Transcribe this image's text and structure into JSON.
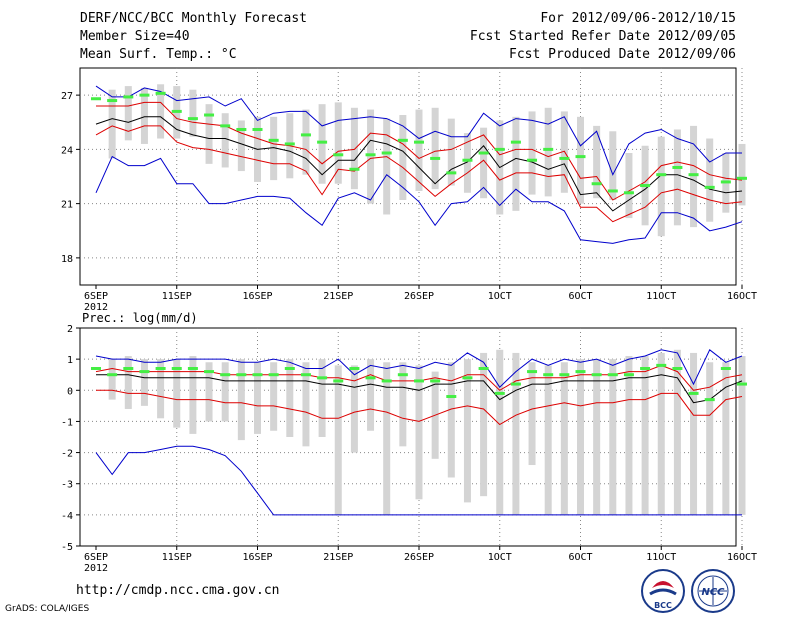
{
  "header": {
    "title": "DERF/NCC/BCC Monthly Forecast",
    "member_size": "Member Size=40",
    "variable": "Mean Surf. Temp.: °C",
    "period": "For 2012/09/06-2012/10/15",
    "started": "Fcst Started Refer Date 2012/09/05",
    "produced": "Fcst Produced Date 2012/09/06"
  },
  "footer": {
    "url": "http://cmdp.ncc.cma.gov.cn",
    "credit": "GrADS: COLA/IGES",
    "logo_left_text": "BCC",
    "logo_right_text": "NCC"
  },
  "colors": {
    "envelope": "#0000cc",
    "spread": "#dd0000",
    "mean": "#000000",
    "observed": "#44ee44",
    "bars": "#d4d4d4"
  },
  "chart_data": [
    {
      "type": "line",
      "title": "Mean Surf. Temp.: °C",
      "x_tick_labels": [
        "6SEP",
        "11SEP",
        "16SEP",
        "21SEP",
        "26SEP",
        "1OCT",
        "6OCT",
        "11OCT",
        "16OCT"
      ],
      "x_year_label": "2012",
      "y_ticks": [
        "18",
        "21",
        "24",
        "27"
      ],
      "ylim": [
        16.5,
        28.5
      ],
      "days": 40,
      "bar_low": [
        23.5,
        24.5,
        24.3,
        24.6,
        24.6,
        24.7,
        23.2,
        23.0,
        22.8,
        22.2,
        22.3,
        22.4,
        22.6,
        22.1,
        22.1,
        21.8,
        21.0,
        20.4,
        21.2,
        21.7,
        21.8,
        22.0,
        21.6,
        21.3,
        20.4,
        20.6,
        21.5,
        21.4,
        21.6,
        21.0,
        21.3,
        21.2,
        20.2,
        19.8,
        19.2,
        19.8,
        19.7,
        20.0,
        20.5,
        20.9
      ],
      "bar_high": [
        27.3,
        27.5,
        27.4,
        27.6,
        27.5,
        27.3,
        26.5,
        26.0,
        25.6,
        25.8,
        25.8,
        26.0,
        26.2,
        26.5,
        26.6,
        26.3,
        26.2,
        25.7,
        25.9,
        26.2,
        26.3,
        25.7,
        24.9,
        25.2,
        25.6,
        25.8,
        26.1,
        26.3,
        26.1,
        25.8,
        25.3,
        25.0,
        23.8,
        24.2,
        24.7,
        25.1,
        25.3,
        24.6,
        23.8,
        24.3
      ],
      "series": [
        {
          "name": "max",
          "color": "blue",
          "values": [
            27.5,
            26.9,
            26.9,
            27.4,
            27.2,
            26.7,
            26.8,
            26.9,
            26.4,
            26.8,
            25.6,
            26.0,
            26.1,
            26.1,
            25.3,
            25.6,
            25.7,
            25.8,
            25.7,
            25.3,
            24.6,
            25.0,
            24.7,
            24.7,
            26.0,
            25.3,
            25.7,
            25.6,
            25.4,
            25.8,
            24.2,
            25.0,
            22.6,
            24.3,
            24.9,
            25.1,
            24.6,
            24.3,
            23.3,
            23.8,
            23.8
          ]
        },
        {
          "name": "upper",
          "color": "red",
          "values": [
            26.4,
            26.4,
            26.4,
            26.6,
            26.6,
            25.7,
            25.5,
            25.4,
            25.3,
            24.9,
            24.6,
            24.3,
            24.2,
            24.0,
            23.2,
            23.9,
            24.0,
            24.9,
            24.8,
            24.3,
            23.5,
            23.9,
            24.0,
            24.4,
            24.8,
            23.7,
            24.0,
            24.0,
            23.6,
            23.9,
            22.4,
            22.5,
            21.2,
            21.7,
            22.2,
            23.1,
            23.3,
            23.1,
            22.6,
            22.4,
            22.3
          ]
        },
        {
          "name": "mean",
          "color": "black",
          "values": [
            25.4,
            25.7,
            25.5,
            25.8,
            25.8,
            25.1,
            24.8,
            24.6,
            24.6,
            24.3,
            24.0,
            24.1,
            23.9,
            23.5,
            22.6,
            23.4,
            23.4,
            24.5,
            24.3,
            23.9,
            23.0,
            22.1,
            22.9,
            23.3,
            24.2,
            23.0,
            23.5,
            23.3,
            22.9,
            23.2,
            21.5,
            21.6,
            20.6,
            21.2,
            21.8,
            22.6,
            22.6,
            22.3,
            21.8,
            21.6,
            21.7
          ]
        },
        {
          "name": "lower",
          "color": "red",
          "values": [
            24.8,
            25.3,
            25.0,
            25.3,
            25.3,
            24.4,
            24.1,
            24.0,
            23.8,
            23.6,
            23.4,
            23.2,
            23.2,
            22.8,
            21.5,
            22.9,
            22.8,
            23.5,
            23.6,
            23.0,
            22.2,
            21.4,
            22.1,
            22.7,
            23.4,
            22.3,
            22.7,
            22.7,
            22.5,
            22.6,
            20.8,
            20.8,
            20.0,
            20.4,
            20.8,
            21.6,
            21.8,
            21.5,
            21.2,
            21.0,
            21.1
          ]
        },
        {
          "name": "min",
          "color": "blue",
          "values": [
            21.6,
            23.6,
            23.1,
            23.1,
            23.5,
            22.1,
            22.1,
            21.0,
            21.0,
            21.2,
            21.4,
            21.4,
            21.3,
            20.5,
            19.8,
            21.3,
            21.6,
            21.2,
            22.6,
            21.9,
            21.1,
            19.8,
            21.0,
            21.1,
            21.9,
            20.9,
            21.8,
            21.1,
            21.1,
            20.6,
            19.0,
            18.9,
            18.8,
            19.0,
            19.1,
            20.5,
            20.5,
            20.2,
            19.5,
            19.7,
            20.0
          ]
        }
      ],
      "observed": [
        26.8,
        26.7,
        26.9,
        27.0,
        27.1,
        26.1,
        25.7,
        25.9,
        25.3,
        25.1,
        25.1,
        24.5,
        24.3,
        24.8,
        24.4,
        23.7,
        22.9,
        23.7,
        23.8,
        24.5,
        24.4,
        23.5,
        22.7,
        23.4,
        23.8,
        24.0,
        24.4,
        23.4,
        24.0,
        23.5,
        23.6,
        22.1,
        21.7,
        21.6,
        22.0,
        22.6,
        23.0,
        22.6,
        21.9,
        22.2,
        22.4
      ]
    },
    {
      "type": "line",
      "title": "Prec.: log(mm/d)",
      "x_tick_labels": [
        "6SEP",
        "11SEP",
        "16SEP",
        "21SEP",
        "26SEP",
        "1OCT",
        "6OCT",
        "11OCT",
        "16OCT"
      ],
      "x_year_label": "2012",
      "y_ticks": [
        "2",
        "1",
        "0",
        "-1",
        "-2",
        "-3",
        "-4",
        "-5"
      ],
      "ylim": [
        -5,
        2
      ],
      "days": 40,
      "bar_low": [
        -0.3,
        -0.6,
        -0.5,
        -0.9,
        -1.2,
        -1.4,
        -1.0,
        -1.0,
        -1.6,
        -1.4,
        -1.3,
        -1.5,
        -1.8,
        -1.5,
        -4.0,
        -2.0,
        -1.3,
        -4.0,
        -1.8,
        -3.5,
        -2.2,
        -2.8,
        -3.6,
        -3.4,
        -4.0,
        -4.0,
        -2.4,
        -4.0,
        -4.0,
        -4.0,
        -4.0,
        -4.0,
        -4.0,
        -4.0,
        -4.0,
        -4.0,
        -4.0,
        -4.0,
        -4.0,
        -4.0
      ],
      "bar_high": [
        1.0,
        1.1,
        1.0,
        1.0,
        1.0,
        1.1,
        0.9,
        0.9,
        1.0,
        0.9,
        0.9,
        1.0,
        0.9,
        1.0,
        0.8,
        0.8,
        1.0,
        0.9,
        0.9,
        0.8,
        0.6,
        0.9,
        1.0,
        1.2,
        1.3,
        1.2,
        0.9,
        0.8,
        0.9,
        1.0,
        1.0,
        1.0,
        1.1,
        1.1,
        1.2,
        1.3,
        1.2,
        0.9,
        0.9,
        1.1
      ],
      "series": [
        {
          "name": "max",
          "color": "blue",
          "values": [
            1.1,
            1.0,
            1.0,
            0.9,
            0.9,
            1.0,
            1.0,
            1.0,
            1.0,
            0.9,
            0.9,
            1.0,
            0.9,
            0.7,
            0.7,
            1.0,
            0.5,
            0.8,
            0.7,
            0.8,
            0.7,
            0.9,
            0.8,
            1.2,
            0.9,
            0.1,
            0.6,
            1.0,
            0.8,
            1.0,
            0.9,
            1.0,
            0.8,
            1.0,
            1.1,
            1.3,
            1.2,
            0.2,
            1.3,
            0.9,
            1.1
          ]
        },
        {
          "name": "upper",
          "color": "red",
          "values": [
            0.6,
            0.7,
            0.6,
            0.6,
            0.6,
            0.6,
            0.6,
            0.6,
            0.5,
            0.5,
            0.5,
            0.5,
            0.5,
            0.5,
            0.4,
            0.4,
            0.3,
            0.5,
            0.3,
            0.3,
            0.3,
            0.4,
            0.3,
            0.5,
            0.5,
            0.0,
            0.3,
            0.4,
            0.4,
            0.4,
            0.5,
            0.5,
            0.5,
            0.6,
            0.6,
            0.8,
            0.6,
            0.0,
            0.1,
            0.4,
            0.5
          ]
        },
        {
          "name": "mean",
          "color": "black",
          "values": [
            0.5,
            0.5,
            0.5,
            0.4,
            0.4,
            0.4,
            0.4,
            0.4,
            0.3,
            0.3,
            0.3,
            0.3,
            0.3,
            0.3,
            0.2,
            0.2,
            0.1,
            0.2,
            0.1,
            0.1,
            0.0,
            0.2,
            0.2,
            0.3,
            0.3,
            -0.3,
            0.0,
            0.2,
            0.2,
            0.3,
            0.3,
            0.3,
            0.3,
            0.4,
            0.4,
            0.5,
            0.4,
            -0.4,
            -0.3,
            0.1,
            0.3
          ]
        },
        {
          "name": "lower",
          "color": "red",
          "values": [
            0.0,
            0.0,
            -0.1,
            -0.1,
            -0.2,
            -0.3,
            -0.3,
            -0.3,
            -0.4,
            -0.4,
            -0.5,
            -0.5,
            -0.6,
            -0.7,
            -0.9,
            -0.9,
            -0.7,
            -0.6,
            -0.7,
            -0.9,
            -1.0,
            -0.8,
            -0.6,
            -0.5,
            -0.6,
            -1.1,
            -0.8,
            -0.6,
            -0.5,
            -0.4,
            -0.5,
            -0.4,
            -0.4,
            -0.3,
            -0.3,
            -0.1,
            -0.1,
            -0.8,
            -0.8,
            -0.3,
            -0.2
          ]
        },
        {
          "name": "min",
          "color": "blue",
          "values": [
            -2.0,
            -2.7,
            -2.0,
            -2.0,
            -1.9,
            -1.8,
            -1.8,
            -1.9,
            -2.1,
            -2.6,
            -3.3,
            -4.0,
            -4.0,
            -4.0,
            -4.0,
            -4.0,
            -4.0,
            -4.0,
            -4.0,
            -4.0,
            -4.0,
            -4.0,
            -4.0,
            -4.0,
            -4.0,
            -4.0,
            -4.0,
            -4.0,
            -4.0,
            -4.0,
            -4.0,
            -4.0,
            -4.0,
            -4.0,
            -4.0,
            -4.0,
            -4.0,
            -4.0,
            -4.0,
            -4.0,
            -4.0
          ]
        }
      ],
      "observed": [
        0.7,
        0.5,
        0.7,
        0.6,
        0.7,
        0.7,
        0.7,
        0.6,
        0.5,
        0.5,
        0.5,
        0.5,
        0.7,
        0.5,
        0.4,
        0.3,
        0.7,
        0.4,
        0.3,
        0.5,
        0.3,
        0.3,
        -0.2,
        0.4,
        0.7,
        -0.1,
        0.2,
        0.6,
        0.5,
        0.5,
        0.6,
        0.5,
        0.5,
        0.5,
        0.7,
        0.8,
        0.7,
        -0.1,
        -0.3,
        0.7,
        0.2
      ]
    }
  ]
}
